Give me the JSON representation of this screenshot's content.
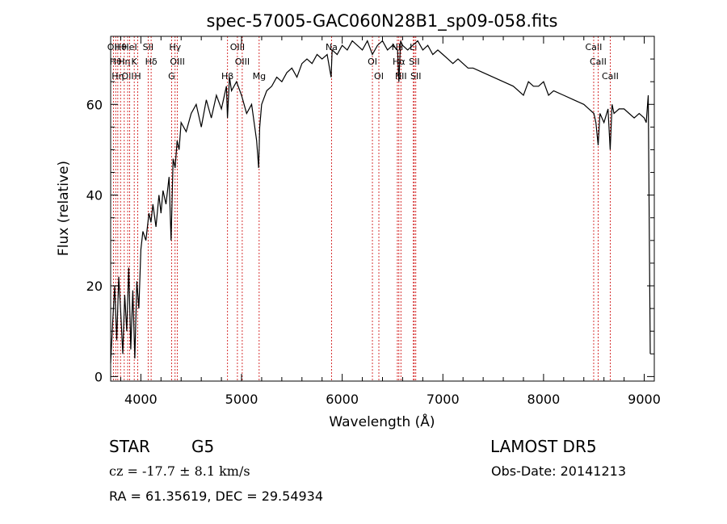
{
  "chart_data": {
    "type": "line",
    "title": "spec-57005-GAC060N28B1_sp09-058.fits",
    "xlabel": "Wavelength (Å)",
    "ylabel": "Flux (relative)",
    "xlim": [
      3700,
      9100
    ],
    "ylim": [
      -1,
      75
    ],
    "xticks": [
      4000,
      5000,
      6000,
      7000,
      8000,
      9000
    ],
    "yticks": [
      0,
      20,
      40,
      60
    ],
    "grid": false,
    "line_color": "#000000",
    "marker_color": "#cc0000",
    "series": [
      {
        "x": [
          3700,
          3720,
          3740,
          3760,
          3780,
          3800,
          3820,
          3840,
          3860,
          3880,
          3900,
          3920,
          3940,
          3960,
          3980,
          4000,
          4020,
          4050,
          4080,
          4100,
          4120,
          4150,
          4180,
          4200,
          4220,
          4250,
          4280,
          4300,
          4320,
          4340,
          4360,
          4380,
          4400,
          4450,
          4500,
          4550,
          4600,
          4650,
          4700,
          4750,
          4800,
          4850,
          4860,
          4880,
          4900,
          4950,
          5000,
          5050,
          5100,
          5150,
          5170,
          5180,
          5200,
          5250,
          5300,
          5350,
          5400,
          5450,
          5500,
          5550,
          5600,
          5650,
          5700,
          5750,
          5800,
          5850,
          5890,
          5900,
          5950,
          6000,
          6050,
          6100,
          6150,
          6200,
          6250,
          6300,
          6350,
          6400,
          6450,
          6500,
          6550,
          6563,
          6580,
          6600,
          6650,
          6700,
          6750,
          6800,
          6850,
          6900,
          6950,
          7000,
          7050,
          7100,
          7150,
          7200,
          7250,
          7300,
          7400,
          7500,
          7600,
          7700,
          7800,
          7850,
          7900,
          7950,
          8000,
          8050,
          8100,
          8200,
          8300,
          8400,
          8450,
          8500,
          8520,
          8542,
          8560,
          8600,
          8640,
          8662,
          8680,
          8700,
          8750,
          8800,
          8850,
          8900,
          8950,
          9000,
          9020,
          9040,
          9060
        ],
        "y": [
          3,
          12,
          20,
          8,
          22,
          14,
          5,
          18,
          10,
          24,
          6,
          19,
          4,
          21,
          15,
          28,
          32,
          30,
          36,
          34,
          38,
          33,
          40,
          36,
          41,
          38,
          44,
          30,
          48,
          46,
          52,
          50,
          56,
          54,
          58,
          60,
          55,
          61,
          57,
          62,
          59,
          64,
          57,
          66,
          63,
          65,
          62,
          58,
          60,
          52,
          46,
          55,
          60,
          63,
          64,
          66,
          65,
          67,
          68,
          66,
          69,
          70,
          69,
          71,
          70,
          71,
          66,
          72,
          71,
          73,
          72,
          74,
          73,
          72,
          74,
          71,
          73,
          74,
          72,
          73,
          72,
          65,
          74,
          73,
          72,
          73,
          74,
          72,
          73,
          71,
          72,
          71,
          70,
          69,
          70,
          69,
          68,
          68,
          67,
          66,
          65,
          64,
          62,
          65,
          64,
          64,
          65,
          62,
          63,
          62,
          61,
          60,
          59,
          58,
          56,
          51,
          58,
          56,
          59,
          50,
          60,
          58,
          59,
          59,
          58,
          57,
          58,
          57,
          56,
          62,
          5
        ]
      }
    ],
    "lines": [
      {
        "x": 3727,
        "labels": [
          "OII"
        ]
      },
      {
        "x": 3750,
        "labels": [
          "Hθ"
        ]
      },
      {
        "x": 3771,
        "labels": [
          "Hη"
        ]
      },
      {
        "x": 3798,
        "labels": [
          "Hθ"
        ]
      },
      {
        "x": 3835,
        "labels": [
          "Hη"
        ]
      },
      {
        "x": 3869,
        "labels": [
          "OII"
        ]
      },
      {
        "x": 3889,
        "labels": [
          "HeI"
        ]
      },
      {
        "x": 3934,
        "labels": [
          "K"
        ]
      },
      {
        "x": 3969,
        "labels": [
          "H"
        ]
      },
      {
        "x": 4072,
        "labels": [
          "SII"
        ]
      },
      {
        "x": 4102,
        "labels": [
          "Hδ"
        ]
      },
      {
        "x": 4305,
        "labels": [
          "G"
        ]
      },
      {
        "x": 4340,
        "labels": [
          "Hγ"
        ]
      },
      {
        "x": 4363,
        "labels": [
          "OIII"
        ]
      },
      {
        "x": 4861,
        "labels": [
          "Hβ"
        ]
      },
      {
        "x": 4959,
        "labels": [
          "OIII"
        ]
      },
      {
        "x": 5007,
        "labels": [
          "OIII"
        ]
      },
      {
        "x": 5175,
        "labels": [
          "Mg"
        ]
      },
      {
        "x": 5894,
        "labels": [
          "Na"
        ]
      },
      {
        "x": 6300,
        "labels": [
          "OI"
        ]
      },
      {
        "x": 6364,
        "labels": [
          "OI"
        ]
      },
      {
        "x": 6548,
        "labels": [
          "NII"
        ]
      },
      {
        "x": 6563,
        "labels": [
          "Hα"
        ]
      },
      {
        "x": 6583,
        "labels": [
          "NII"
        ]
      },
      {
        "x": 6707,
        "labels": [
          "Li"
        ]
      },
      {
        "x": 6716,
        "labels": [
          "SII"
        ]
      },
      {
        "x": 6731,
        "labels": [
          "SII"
        ]
      },
      {
        "x": 8498,
        "labels": [
          "CaII"
        ]
      },
      {
        "x": 8542,
        "labels": [
          "CaII"
        ]
      },
      {
        "x": 8662,
        "labels": [
          "CaII"
        ]
      }
    ]
  },
  "info": {
    "class_label": "STAR",
    "subclass": "G5",
    "survey": "LAMOST DR5",
    "cz": "cz = -17.7 ± 8.1 km/s",
    "obs_date": "Obs-Date: 20141213",
    "radec": "RA =  61.35619, DEC =  29.54934"
  }
}
